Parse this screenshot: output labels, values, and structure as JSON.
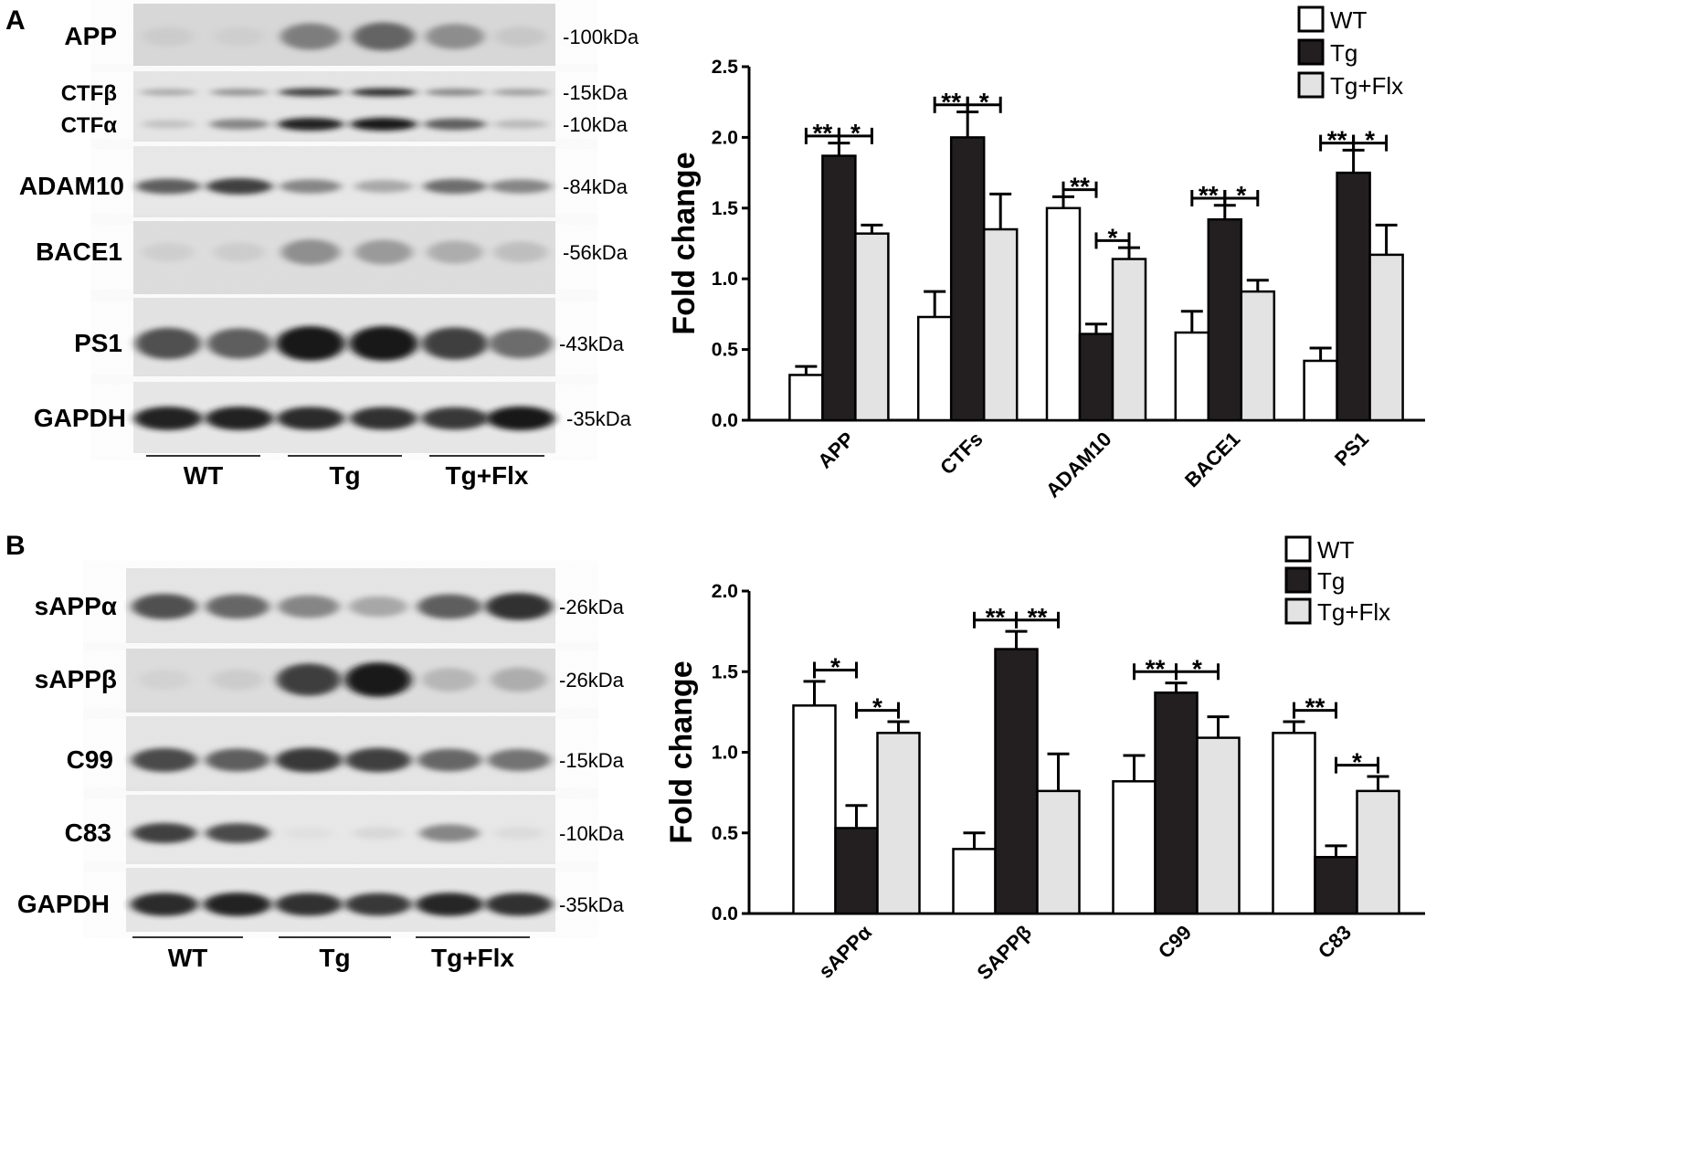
{
  "panels": {
    "A": {
      "letter": "A",
      "blot": {
        "rows": [
          {
            "name": "APP",
            "kda": "-100kDa",
            "intensity": [
              0.18,
              0.16,
              0.62,
              0.72,
              0.55,
              0.22
            ]
          },
          {
            "name": "CTFβ",
            "kda": "-15kDa",
            "intensity": [
              0.45,
              0.55,
              0.85,
              0.9,
              0.6,
              0.5
            ]
          },
          {
            "name": "CTFα",
            "kda": "-10kDa",
            "intensity": [
              0.3,
              0.6,
              0.95,
              0.97,
              0.75,
              0.35
            ]
          },
          {
            "name": "ADAM10",
            "kda": "-84kDa",
            "intensity": [
              0.75,
              0.85,
              0.6,
              0.45,
              0.7,
              0.6
            ]
          },
          {
            "name": "BACE1",
            "kda": "-56kDa",
            "intensity": [
              0.18,
              0.2,
              0.55,
              0.5,
              0.4,
              0.3
            ]
          },
          {
            "name": "PS1",
            "kda": "-43kDa",
            "intensity": [
              0.8,
              0.75,
              0.98,
              0.98,
              0.85,
              0.7
            ]
          },
          {
            "name": "GAPDH",
            "kda": "-35kDa",
            "intensity": [
              0.95,
              0.95,
              0.92,
              0.9,
              0.88,
              0.98
            ]
          }
        ],
        "groups": [
          "WT",
          "Tg",
          "Tg+Flx"
        ]
      },
      "chart_data": {
        "type": "bar",
        "categories": [
          "APP",
          "CTFs",
          "ADAM10",
          "BACE1",
          "PS1"
        ],
        "series": [
          {
            "name": "WT",
            "color": "#ffffff",
            "values": [
              0.32,
              0.73,
              1.5,
              0.62,
              0.42
            ],
            "errors": [
              0.06,
              0.18,
              0.08,
              0.15,
              0.09
            ]
          },
          {
            "name": "Tg",
            "color": "#231f20",
            "values": [
              1.87,
              2.0,
              0.61,
              1.42,
              1.75
            ],
            "errors": [
              0.09,
              0.18,
              0.07,
              0.1,
              0.16
            ]
          },
          {
            "name": "Tg+Flx",
            "color": "#e3e3e3",
            "values": [
              1.32,
              1.35,
              1.14,
              0.91,
              1.17
            ],
            "errors": [
              0.06,
              0.25,
              0.08,
              0.08,
              0.21
            ]
          }
        ],
        "significance": [
          {
            "category": "APP",
            "pair": [
              "WT",
              "Tg"
            ],
            "label": "**"
          },
          {
            "category": "APP",
            "pair": [
              "Tg",
              "Tg+Flx"
            ],
            "label": "*"
          },
          {
            "category": "CTFs",
            "pair": [
              "WT",
              "Tg"
            ],
            "label": "**"
          },
          {
            "category": "CTFs",
            "pair": [
              "Tg",
              "Tg+Flx"
            ],
            "label": "*"
          },
          {
            "category": "ADAM10",
            "pair": [
              "WT",
              "Tg"
            ],
            "label": "**"
          },
          {
            "category": "ADAM10",
            "pair": [
              "Tg",
              "Tg+Flx"
            ],
            "label": "*"
          },
          {
            "category": "BACE1",
            "pair": [
              "WT",
              "Tg"
            ],
            "label": "**"
          },
          {
            "category": "BACE1",
            "pair": [
              "Tg",
              "Tg+Flx"
            ],
            "label": "*"
          },
          {
            "category": "PS1",
            "pair": [
              "WT",
              "Tg"
            ],
            "label": "**"
          },
          {
            "category": "PS1",
            "pair": [
              "Tg",
              "Tg+Flx"
            ],
            "label": "*"
          }
        ],
        "ylabel": "Fold change",
        "ylim": [
          0,
          2.5
        ],
        "yticks": [
          "0.0",
          "0.5",
          "1.0",
          "1.5",
          "2.0",
          "2.5"
        ],
        "legend": "top-right"
      }
    },
    "B": {
      "letter": "B",
      "blot": {
        "rows": [
          {
            "name": "sAPPα",
            "kda": "-26kDa",
            "intensity": [
              0.8,
              0.72,
              0.6,
              0.45,
              0.75,
              0.9
            ]
          },
          {
            "name": "sAPPβ",
            "kda": "-26kDa",
            "intensity": [
              0.15,
              0.2,
              0.85,
              0.97,
              0.35,
              0.4
            ]
          },
          {
            "name": "C99",
            "kda": "-15kDa",
            "intensity": [
              0.82,
              0.75,
              0.88,
              0.85,
              0.72,
              0.68
            ]
          },
          {
            "name": "C83",
            "kda": "-10kDa",
            "intensity": [
              0.85,
              0.82,
              0.08,
              0.15,
              0.6,
              0.12
            ]
          },
          {
            "name": "GAPDH",
            "kda": "-35kDa",
            "intensity": [
              0.92,
              0.95,
              0.9,
              0.88,
              0.93,
              0.9
            ]
          }
        ],
        "groups": [
          "WT",
          "Tg",
          "Tg+Flx"
        ]
      },
      "chart_data": {
        "type": "bar",
        "categories": [
          "sAPPα",
          "SAPPβ",
          "C99",
          "C83"
        ],
        "series": [
          {
            "name": "WT",
            "color": "#ffffff",
            "values": [
              1.29,
              0.4,
              0.82,
              1.12
            ],
            "errors": [
              0.15,
              0.1,
              0.16,
              0.07
            ]
          },
          {
            "name": "Tg",
            "color": "#231f20",
            "values": [
              0.53,
              1.64,
              1.37,
              0.35
            ],
            "errors": [
              0.14,
              0.11,
              0.06,
              0.07
            ]
          },
          {
            "name": "Tg+Flx",
            "color": "#e3e3e3",
            "values": [
              1.12,
              0.76,
              1.09,
              0.76
            ],
            "errors": [
              0.07,
              0.23,
              0.13,
              0.09
            ]
          }
        ],
        "significance": [
          {
            "category": "sAPPα",
            "pair": [
              "WT",
              "Tg"
            ],
            "label": "*"
          },
          {
            "category": "sAPPα",
            "pair": [
              "Tg",
              "Tg+Flx"
            ],
            "label": "*"
          },
          {
            "category": "SAPPβ",
            "pair": [
              "WT",
              "Tg"
            ],
            "label": "**"
          },
          {
            "category": "SAPPβ",
            "pair": [
              "Tg",
              "Tg+Flx"
            ],
            "label": "**"
          },
          {
            "category": "C99",
            "pair": [
              "WT",
              "Tg"
            ],
            "label": "**"
          },
          {
            "category": "C99",
            "pair": [
              "Tg",
              "Tg+Flx"
            ],
            "label": "*"
          },
          {
            "category": "C83",
            "pair": [
              "WT",
              "Tg"
            ],
            "label": "**"
          },
          {
            "category": "C83",
            "pair": [
              "Tg",
              "Tg+Flx"
            ],
            "label": "*"
          }
        ],
        "ylabel": "Fold change",
        "ylim": [
          0,
          2.0
        ],
        "yticks": [
          "0.0",
          "0.5",
          "1.0",
          "1.5",
          "2.0"
        ],
        "legend": "top-right"
      }
    }
  }
}
